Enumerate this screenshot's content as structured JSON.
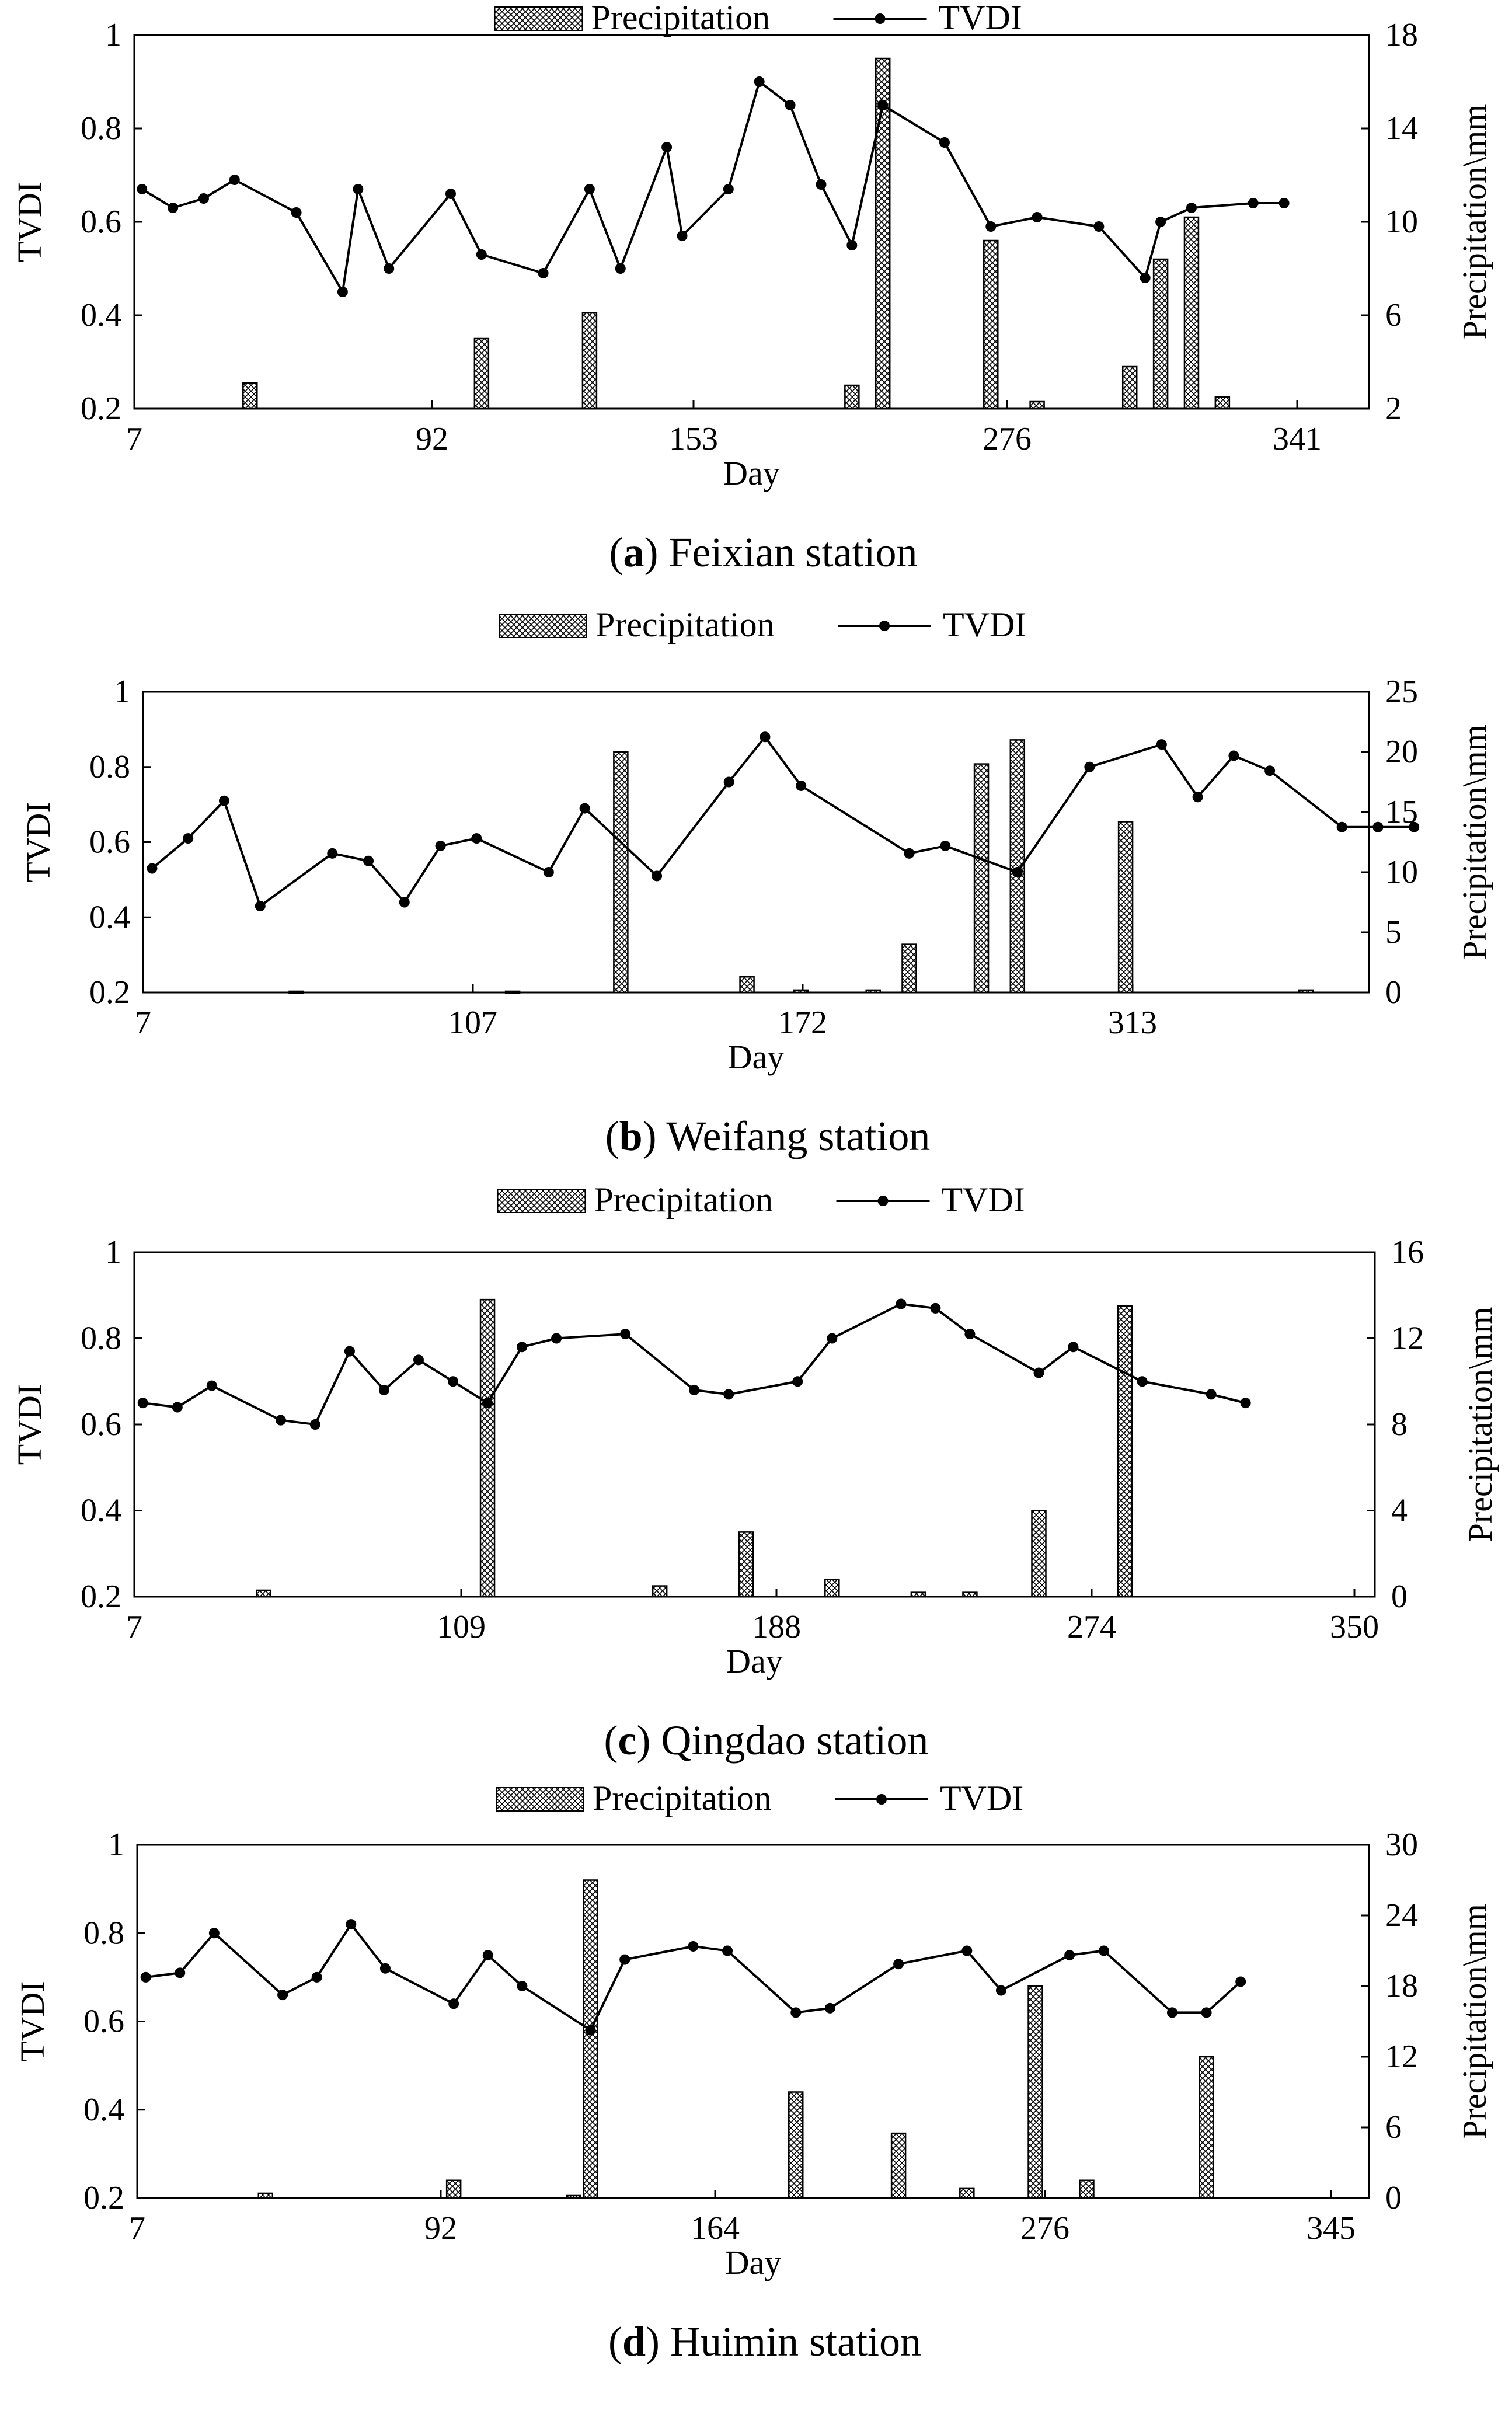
{
  "figure": {
    "panels": [
      {
        "caption": {
          "letter": "a",
          "name": "Feixian station"
        },
        "chart_data": {
          "type": "bar+line",
          "title": "",
          "xlabel": "Day",
          "ylabel_left": "TVDI",
          "ylabel_right": "Precipitation\\mm",
          "legend": [
            "Precipitation",
            "TVDI"
          ],
          "legend_position": "top-center",
          "x_ticks": [
            "7",
            "92",
            "153",
            "276",
            "341"
          ],
          "ylim_left": [
            0.2,
            1.0
          ],
          "yticks_left": [
            "0.2",
            "0.4",
            "0.6",
            "0.8",
            "1"
          ],
          "ylim_right": [
            2,
            18
          ],
          "yticks_right": [
            "2",
            "6",
            "10",
            "14",
            "18"
          ],
          "n_slots": 40,
          "series": [
            {
              "name": "TVDI",
              "axis": "left",
              "type": "line",
              "slots": [
                0,
                2,
                4,
                6,
                10,
                13,
                14,
                16,
                20,
                22,
                26,
                29,
                31,
                34,
                35,
                38,
                40,
                42,
                44,
                46,
                48,
                52,
                55,
                58,
                62,
                65,
                66,
                68,
                72,
                74
              ],
              "values": [
                0.67,
                0.63,
                0.65,
                0.69,
                0.62,
                0.45,
                0.67,
                0.5,
                0.66,
                0.53,
                0.49,
                0.67,
                0.5,
                0.76,
                0.57,
                0.67,
                0.9,
                0.85,
                0.68,
                0.55,
                0.85,
                0.77,
                0.59,
                0.61,
                0.59,
                0.48,
                0.6,
                0.63,
                0.64,
                0.64
              ]
            },
            {
              "name": "Precipitation",
              "axis": "right",
              "type": "bar",
              "slots": [
                7,
                22,
                29,
                46,
                48,
                55,
                58,
                64,
                66,
                68,
                70
              ],
              "values": [
                3.1,
                5.0,
                6.1,
                3.0,
                17.0,
                9.2,
                2.3,
                3.8,
                8.4,
                10.2,
                2.5
              ]
            }
          ]
        }
      },
      {
        "caption": {
          "letter": "b",
          "name": "Weifang station"
        },
        "chart_data": {
          "type": "bar+line",
          "title": "",
          "xlabel": "Day",
          "ylabel_left": "TVDI",
          "ylabel_right": "Precipitation\\mm",
          "legend": [
            "Precipitation",
            "TVDI"
          ],
          "legend_position": "top-center",
          "x_ticks": [
            "7",
            "107",
            "172",
            "313"
          ],
          "ylim_left": [
            0.2,
            1.0
          ],
          "yticks_left": [
            "0.2",
            "0.4",
            "0.6",
            "0.8",
            "1"
          ],
          "ylim_right": [
            0,
            25
          ],
          "yticks_right": [
            "0",
            "5",
            "10",
            "15",
            "20",
            "25"
          ],
          "n_slots": 34,
          "series": [
            {
              "name": "TVDI",
              "axis": "left",
              "type": "line",
              "slots": [
                0,
                2,
                4,
                6,
                10,
                12,
                14,
                16,
                18,
                22,
                24,
                28,
                32,
                34,
                36,
                42,
                44,
                48,
                52,
                56,
                58,
                60,
                62,
                66,
                68,
                70
              ],
              "values": [
                0.53,
                0.61,
                0.71,
                0.43,
                0.57,
                0.55,
                0.44,
                0.59,
                0.61,
                0.52,
                0.69,
                0.51,
                0.76,
                0.88,
                0.75,
                0.57,
                0.59,
                0.52,
                0.8,
                0.86,
                0.72,
                0.83,
                0.79,
                0.64,
                0.64,
                0.64
              ]
            },
            {
              "name": "Precipitation",
              "axis": "right",
              "type": "bar",
              "slots": [
                8,
                20,
                26,
                33,
                36,
                40,
                42,
                46,
                48,
                54,
                64
              ],
              "values": [
                0.1,
                0.1,
                20.0,
                1.3,
                0.2,
                0.2,
                4.0,
                19.0,
                21.0,
                14.2,
                0.2
              ]
            }
          ]
        }
      },
      {
        "caption": {
          "letter": "c",
          "name": "Qingdao station"
        },
        "chart_data": {
          "type": "bar+line",
          "title": "",
          "xlabel": "Day",
          "ylabel_left": "TVDI",
          "ylabel_right": "Precipitation\\mm",
          "legend": [
            "Precipitation",
            "TVDI"
          ],
          "legend_position": "top-center",
          "x_ticks": [
            "7",
            "109",
            "188",
            "274",
            "350"
          ],
          "ylim_left": [
            0.2,
            1.0
          ],
          "yticks_left": [
            "0.2",
            "0.4",
            "0.6",
            "0.8",
            "1"
          ],
          "ylim_right": [
            0,
            16
          ],
          "yticks_right": [
            "0",
            "4",
            "8",
            "12",
            "16"
          ],
          "n_slots": 36,
          "series": [
            {
              "name": "TVDI",
              "axis": "left",
              "type": "line",
              "slots": [
                0,
                2,
                4,
                8,
                10,
                12,
                14,
                16,
                18,
                20,
                22,
                24,
                28,
                32,
                34,
                38,
                40,
                44,
                46,
                48,
                52,
                54
              ],
              "values": [
                0.65,
                0.64,
                0.69,
                0.61,
                0.6,
                0.77,
                0.68,
                0.75,
                0.7,
                0.65,
                0.78,
                0.8,
                0.81,
                0.68,
                0.67,
                0.7,
                0.8,
                0.88,
                0.87,
                0.81,
                0.72,
                0.78
              ]
            },
            {
              "name": "Precipitation",
              "axis": "right",
              "type": "bar",
              "slots": [
                7,
                20,
                30,
                35,
                40,
                45,
                48,
                52,
                57
              ],
              "values": [
                0.3,
                13.8,
                0.5,
                3.0,
                0.8,
                0.2,
                0.2,
                4.0,
                13.5
              ]
            }
          ],
          "tail": {
            "slots": [
              58,
              62,
              64
            ],
            "values": [
              0.7,
              0.67,
              0.65
            ]
          }
        }
      },
      {
        "caption": {
          "letter": "d",
          "name": "Huimin station"
        },
        "chart_data": {
          "type": "bar+line",
          "title": "",
          "xlabel": "Day",
          "ylabel_left": "TVDI",
          "ylabel_right": "Precipitation\\mm",
          "legend": [
            "Precipitation",
            "TVDI"
          ],
          "legend_position": "top-center",
          "x_ticks": [
            "7",
            "92",
            "164",
            "276",
            "345"
          ],
          "ylim_left": [
            0.2,
            1.0
          ],
          "yticks_left": [
            "0.2",
            "0.4",
            "0.6",
            "0.8",
            "1"
          ],
          "ylim_right": [
            0,
            30
          ],
          "yticks_right": [
            "0",
            "6",
            "12",
            "18",
            "24",
            "30"
          ],
          "n_slots": 36,
          "series": [
            {
              "name": "TVDI",
              "axis": "left",
              "type": "line",
              "slots": [
                0,
                2,
                4,
                8,
                10,
                12,
                14,
                18,
                20,
                22,
                26,
                28,
                32,
                34,
                38,
                40,
                44,
                48,
                50,
                54,
                56,
                60,
                62
              ],
              "values": [
                0.7,
                0.71,
                0.8,
                0.66,
                0.7,
                0.82,
                0.72,
                0.64,
                0.75,
                0.68,
                0.58,
                0.74,
                0.77,
                0.76,
                0.62,
                0.63,
                0.73,
                0.76,
                0.67,
                0.75,
                0.76,
                0.62,
                0.62
              ]
            },
            {
              "name": "Precipitation",
              "axis": "right",
              "type": "bar",
              "slots": [
                7,
                18,
                25,
                26,
                38,
                44,
                48,
                52,
                55,
                62
              ],
              "values": [
                0.4,
                1.5,
                0.2,
                27.0,
                9.0,
                5.5,
                0.8,
                18.0,
                1.5,
                12.0
              ]
            }
          ],
          "tail": {
            "slots": [
              64
            ],
            "values": [
              0.69
            ]
          }
        }
      }
    ]
  }
}
